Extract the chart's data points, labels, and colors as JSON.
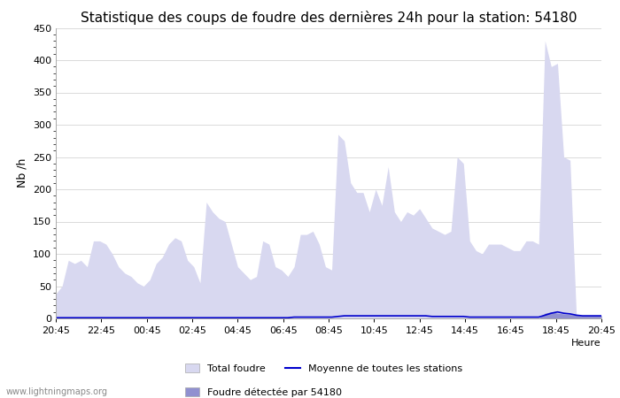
{
  "title": "Statistique des coups de foudre des dernières 24h pour la station: 54180",
  "ylabel": "Nb /h",
  "watermark": "www.lightningmaps.org",
  "ylim": [
    0,
    450
  ],
  "yticks": [
    0,
    50,
    100,
    150,
    200,
    250,
    300,
    350,
    400,
    450
  ],
  "xtick_display": [
    "20:45",
    "22:45",
    "00:45",
    "02:45",
    "04:45",
    "06:45",
    "08:45",
    "10:45",
    "12:45",
    "14:45",
    "16:45",
    "18:45",
    "20:45"
  ],
  "bg_color": "#ffffff",
  "fill_total_color": "#d8d8f0",
  "fill_station_color": "#9090d0",
  "line_mean_color": "#0000cc",
  "total_foudre": [
    38,
    50,
    90,
    85,
    90,
    80,
    120,
    120,
    115,
    100,
    80,
    70,
    65,
    55,
    50,
    60,
    85,
    95,
    115,
    125,
    120,
    90,
    80,
    55,
    180,
    165,
    155,
    150,
    115,
    80,
    70,
    60,
    65,
    120,
    115,
    80,
    75,
    65,
    80,
    130,
    130,
    135,
    115,
    80,
    75,
    285,
    275,
    210,
    195,
    195,
    165,
    200,
    175,
    235,
    165,
    150,
    165,
    160,
    170,
    155,
    140,
    135,
    130,
    135,
    250,
    240,
    120,
    105,
    100,
    115,
    115,
    115,
    110,
    105,
    105,
    120,
    120,
    115,
    430,
    390,
    395,
    250,
    245,
    5,
    5,
    5,
    5,
    5
  ],
  "station_54180": [
    0,
    0,
    0,
    0,
    0,
    0,
    0,
    0,
    0,
    0,
    0,
    0,
    0,
    0,
    0,
    0,
    0,
    0,
    0,
    0,
    0,
    0,
    0,
    0,
    0,
    0,
    0,
    0,
    0,
    0,
    0,
    0,
    0,
    0,
    0,
    0,
    0,
    0,
    0,
    0,
    0,
    0,
    0,
    0,
    0,
    0,
    0,
    0,
    0,
    0,
    0,
    0,
    0,
    0,
    0,
    0,
    0,
    0,
    0,
    0,
    0,
    0,
    0,
    0,
    0,
    0,
    0,
    0,
    0,
    0,
    0,
    0,
    0,
    0,
    0,
    0,
    0,
    0,
    8,
    10,
    8,
    7,
    6,
    5,
    4,
    4,
    4,
    4
  ],
  "mean_stations": [
    1,
    1,
    1,
    1,
    1,
    1,
    1,
    1,
    1,
    1,
    1,
    1,
    1,
    1,
    1,
    1,
    1,
    1,
    1,
    1,
    1,
    1,
    1,
    1,
    1,
    1,
    1,
    1,
    1,
    1,
    1,
    1,
    1,
    1,
    1,
    1,
    1,
    1,
    2,
    2,
    2,
    2,
    2,
    2,
    2,
    3,
    4,
    4,
    4,
    4,
    4,
    4,
    4,
    4,
    4,
    4,
    4,
    4,
    4,
    4,
    3,
    3,
    3,
    3,
    3,
    3,
    2,
    2,
    2,
    2,
    2,
    2,
    2,
    2,
    2,
    2,
    2,
    2,
    5,
    8,
    10,
    8,
    7,
    5,
    4,
    4,
    4,
    4
  ],
  "legend_total": "Total foudre",
  "legend_mean": "Moyenne de toutes les stations",
  "legend_station": "Foudre détectée par 54180",
  "title_fontsize": 11,
  "tick_fontsize": 8,
  "label_fontsize": 9
}
